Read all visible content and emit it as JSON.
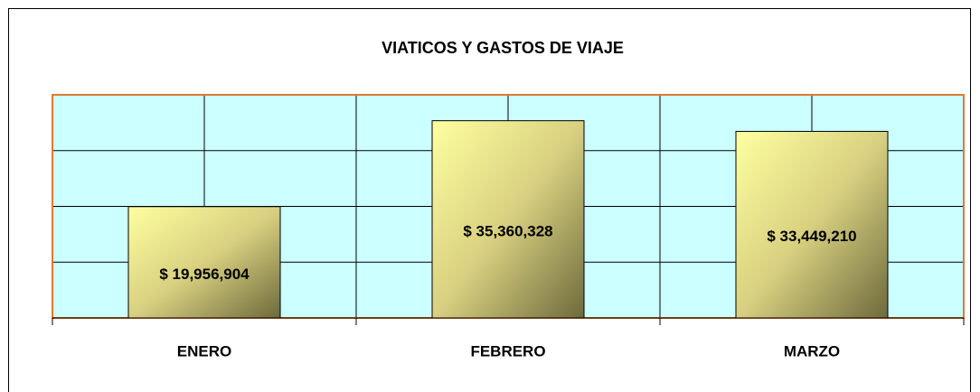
{
  "chart_data": {
    "type": "bar",
    "title": "VIATICOS Y GASTOS DE VIAJE",
    "categories": [
      "ENERO",
      "FEBRERO",
      "MARZO"
    ],
    "values": [
      19956904,
      35360328,
      33449210
    ],
    "value_labels": [
      "$ 19,956,904",
      "$ 35,360,328",
      "$ 33,449,210"
    ],
    "ylim": [
      0,
      40000000
    ],
    "yticks": [
      0,
      10000000,
      20000000,
      30000000,
      40000000
    ],
    "grid": true,
    "color": "#c8c070",
    "plot_background": "#ccffff",
    "plot_border": "#e07a30"
  }
}
